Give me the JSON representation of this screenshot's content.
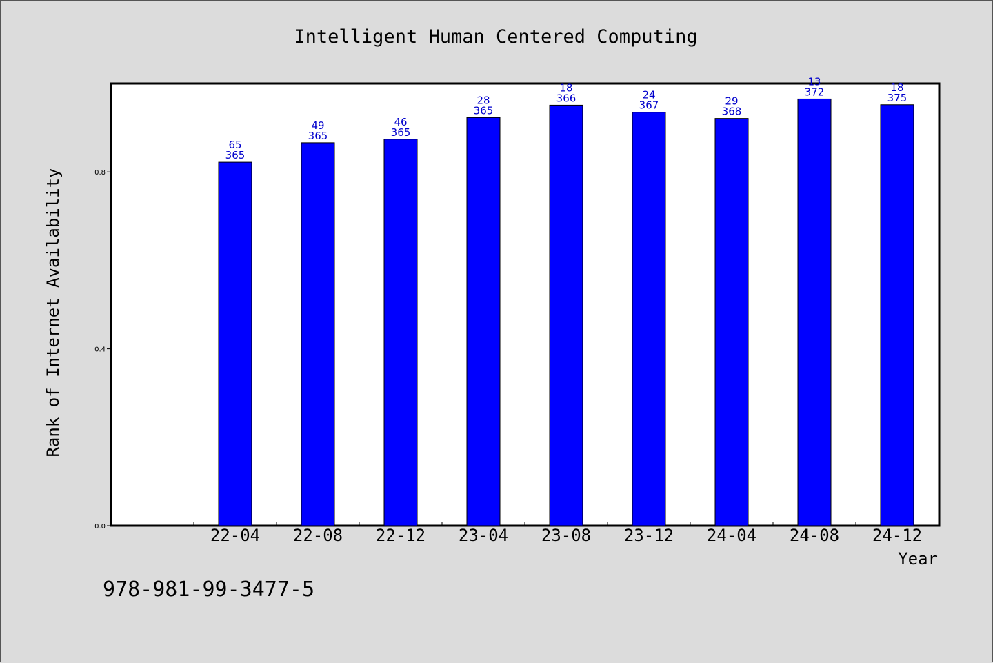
{
  "chart_data": {
    "type": "bar",
    "title": "Intelligent Human Centered Computing",
    "xlabel": "Year",
    "ylabel": "Rank of Internet Availability",
    "categories": [
      "22-04",
      "22-08",
      "22-12",
      "23-04",
      "23-08",
      "23-12",
      "24-04",
      "24-08",
      "24-12"
    ],
    "values": [
      0.822,
      0.866,
      0.874,
      0.923,
      0.951,
      0.935,
      0.921,
      0.965,
      0.952
    ],
    "label_top": [
      "65",
      "49",
      "46",
      "28",
      "18",
      "24",
      "29",
      "13",
      "18"
    ],
    "label_bottom": [
      "365",
      "365",
      "365",
      "365",
      "366",
      "367",
      "368",
      "372",
      "375"
    ],
    "yticks": [
      "0.0",
      "0.4",
      "0.8"
    ],
    "ytick_values": [
      0.0,
      0.4,
      0.8
    ],
    "ylim": [
      0,
      1.0
    ],
    "grid": false,
    "bar_color": "#0000ff",
    "label_color": "#0000cc"
  },
  "footer": {
    "isbn": "978-981-99-3477-5"
  }
}
